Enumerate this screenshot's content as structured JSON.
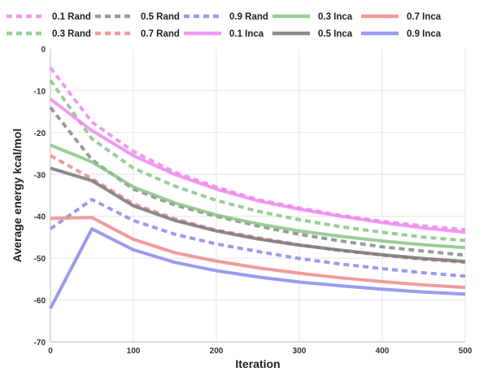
{
  "chart_data": {
    "type": "line",
    "xlabel": "Iteration",
    "ylabel": "Average energy kcal/mol",
    "xlim": [
      0,
      500
    ],
    "ylim": [
      -70,
      0
    ],
    "xticks": [
      0,
      100,
      200,
      300,
      400,
      500
    ],
    "yticks": [
      0,
      -10,
      -20,
      -30,
      -40,
      -50,
      -60,
      -70
    ],
    "grid": true,
    "legend_position": "top",
    "x": [
      0,
      50,
      100,
      150,
      200,
      250,
      300,
      350,
      400,
      450,
      500
    ],
    "series": [
      {
        "name": "0.1 Rand",
        "style": "dashed",
        "color": "#ee88ee",
        "values": [
          -4.5,
          -17.5,
          -24.5,
          -29.5,
          -33.0,
          -36.0,
          -38.0,
          -39.8,
          -41.2,
          -42.3,
          -43.2
        ]
      },
      {
        "name": "0.3 Rand",
        "style": "dashed",
        "color": "#88c488",
        "values": [
          -7.5,
          -21.5,
          -28.5,
          -32.8,
          -36.2,
          -38.8,
          -40.8,
          -42.5,
          -43.8,
          -45.0,
          -45.8
        ]
      },
      {
        "name": "0.5 Rand",
        "style": "dashed",
        "color": "#888888",
        "values": [
          -14.0,
          -26.5,
          -33.5,
          -37.3,
          -40.0,
          -42.3,
          -44.3,
          -45.9,
          -47.3,
          -48.3,
          -49.3
        ]
      },
      {
        "name": "0.7 Rand",
        "style": "dashed",
        "color": "#f08888",
        "values": [
          -25.5,
          -31.0,
          -37.0,
          -40.6,
          -43.3,
          -45.1,
          -46.8,
          -48.2,
          -49.3,
          -50.3,
          -51.0
        ]
      },
      {
        "name": "0.9 Rand",
        "style": "dashed",
        "color": "#8888ee",
        "values": [
          -43.0,
          -36.0,
          -41.0,
          -44.3,
          -46.6,
          -48.4,
          -50.1,
          -51.4,
          -52.5,
          -53.5,
          -54.3
        ]
      },
      {
        "name": "0.1 Inca",
        "style": "solid",
        "color": "#ee88ee",
        "values": [
          -12.0,
          -19.5,
          -25.5,
          -30.0,
          -33.5,
          -36.3,
          -38.3,
          -40.0,
          -41.5,
          -42.8,
          -43.8
        ]
      },
      {
        "name": "0.3 Inca",
        "style": "solid",
        "color": "#88c488",
        "values": [
          -23.0,
          -27.0,
          -33.0,
          -36.8,
          -39.7,
          -41.8,
          -43.5,
          -44.8,
          -45.9,
          -46.8,
          -47.5
        ]
      },
      {
        "name": "0.5 Inca",
        "style": "solid",
        "color": "#777777",
        "values": [
          -28.5,
          -31.5,
          -37.5,
          -41.0,
          -43.5,
          -45.4,
          -46.9,
          -48.1,
          -49.2,
          -50.1,
          -50.8
        ]
      },
      {
        "name": "0.7 Inca",
        "style": "solid",
        "color": "#f08888",
        "values": [
          -40.5,
          -40.3,
          -45.5,
          -48.7,
          -50.7,
          -52.3,
          -53.6,
          -54.7,
          -55.6,
          -56.4,
          -57.0
        ]
      },
      {
        "name": "0.9 Inca",
        "style": "solid",
        "color": "#8888ee",
        "values": [
          -62.0,
          -43.0,
          -48.0,
          -51.0,
          -53.0,
          -54.5,
          -55.7,
          -56.6,
          -57.4,
          -58.1,
          -58.6
        ]
      }
    ]
  }
}
